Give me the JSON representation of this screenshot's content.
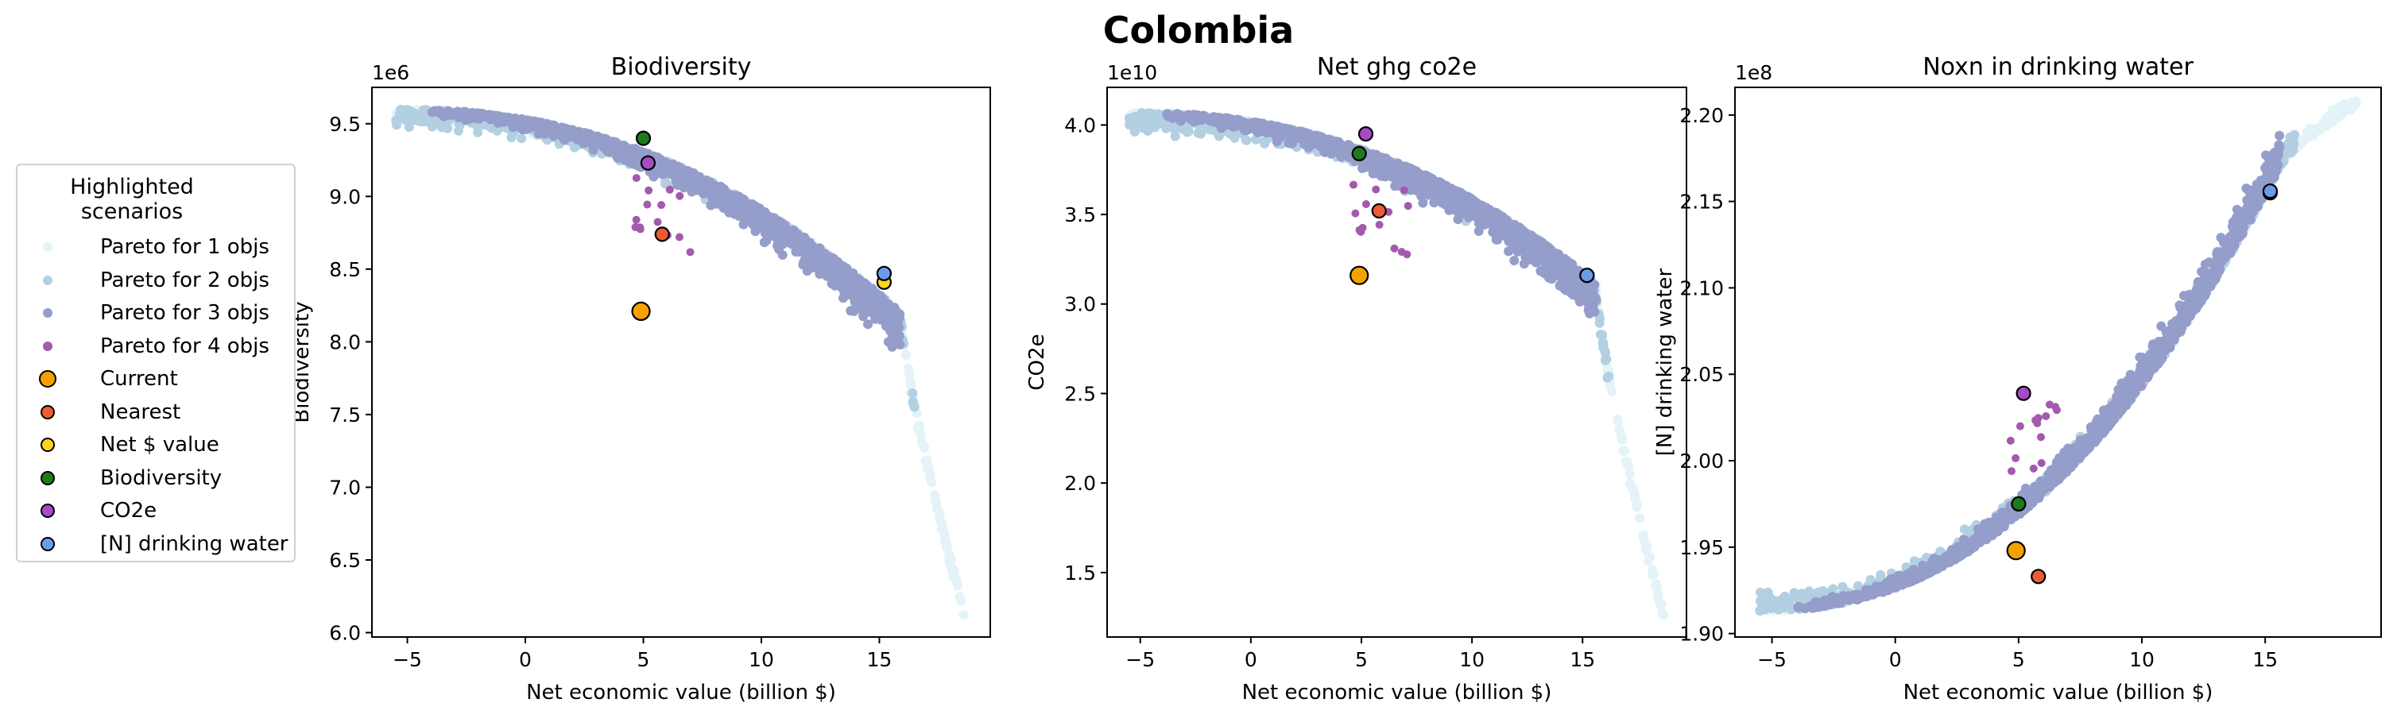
{
  "figure": {
    "suptitle": "Colombia",
    "legend_title": "Highlighted\nscenarios"
  },
  "legend": [
    {
      "label": "Pareto for 1 objs",
      "color": "#e4f3f7",
      "size": "small",
      "edge": false
    },
    {
      "label": "Pareto for 2 objs",
      "color": "#b3cfe2",
      "size": "small",
      "edge": false
    },
    {
      "label": "Pareto for 3 objs",
      "color": "#959dca",
      "size": "small",
      "edge": false
    },
    {
      "label": "Pareto for 4 objs",
      "color": "#a35aad",
      "size": "small",
      "edge": false
    },
    {
      "label": "Current",
      "color": "#f5a100",
      "size": "large",
      "edge": true
    },
    {
      "label": "Nearest",
      "color": "#ee5b34",
      "size": "medium",
      "edge": true
    },
    {
      "label": "Net $ value",
      "color": "#ffd320",
      "size": "medium",
      "edge": true
    },
    {
      "label": "Biodiversity",
      "color": "#1d7b1d",
      "size": "medium",
      "edge": true
    },
    {
      "label": "CO2e",
      "color": "#a44bc5",
      "size": "medium",
      "edge": true
    },
    {
      "label": "[N] drinking water",
      "color": "#6d9be8",
      "size": "medium",
      "edge": true
    }
  ],
  "chart_data": [
    {
      "type": "scatter",
      "title": "Biodiversity",
      "xlabel": "Net economic value (billion $)",
      "ylabel": "Biodiversity",
      "offset_text": "1e6",
      "xlim": [
        -6.5,
        19.7
      ],
      "ylim": [
        5.97,
        9.75
      ],
      "xticks": [
        -5,
        0,
        5,
        10,
        15
      ],
      "yticks": [
        6.0,
        6.5,
        7.0,
        7.5,
        8.0,
        8.5,
        9.0,
        9.5
      ],
      "frontier": {
        "x_start": -5.5,
        "x_knee": 15.9,
        "x_end": 18.7,
        "y_top": 9.6,
        "y_knee": 8.2,
        "y_end": 6.1
      },
      "highlights": [
        {
          "name": "Current",
          "x": 4.9,
          "y": 8.21
        },
        {
          "name": "Nearest",
          "x": 5.8,
          "y": 8.74
        },
        {
          "name": "Net $ value",
          "x": 15.2,
          "y": 8.41
        },
        {
          "name": "Biodiversity",
          "x": 5.0,
          "y": 9.4
        },
        {
          "name": "CO2e",
          "x": 5.2,
          "y": 9.23
        },
        {
          "name": "[N] drinking water",
          "x": 15.2,
          "y": 8.47
        }
      ]
    },
    {
      "type": "scatter",
      "title": "Net ghg co2e",
      "xlabel": "Net economic value (billion $)",
      "ylabel": "CO2e",
      "offset_text": "1e10",
      "xlim": [
        -6.5,
        19.7
      ],
      "ylim": [
        1.14,
        4.21
      ],
      "xticks": [
        -5,
        0,
        5,
        10,
        15
      ],
      "yticks": [
        1.5,
        2.0,
        2.5,
        3.0,
        3.5,
        4.0
      ],
      "frontier": {
        "x_start": -5.5,
        "x_knee": 15.6,
        "x_end": 18.7,
        "y_top": 4.07,
        "y_knee": 3.12,
        "y_end": 1.27
      },
      "highlights": [
        {
          "name": "Current",
          "x": 4.9,
          "y": 3.16
        },
        {
          "name": "Nearest",
          "x": 5.8,
          "y": 3.52
        },
        {
          "name": "Net $ value",
          "x": 15.2,
          "y": 3.16
        },
        {
          "name": "Biodiversity",
          "x": 4.9,
          "y": 3.84
        },
        {
          "name": "CO2e",
          "x": 5.2,
          "y": 3.95
        },
        {
          "name": "[N] drinking water",
          "x": 15.2,
          "y": 3.16
        }
      ]
    },
    {
      "type": "scatter",
      "title": "Noxn in drinking water",
      "xlabel": "Net economic value (billion $)",
      "ylabel": "[N] drinking water",
      "offset_text": "1e8",
      "xlim": [
        -6.5,
        19.7
      ],
      "ylim": [
        1.898,
        2.216
      ],
      "xticks": [
        -5,
        0,
        5,
        10,
        15
      ],
      "yticks": [
        1.9,
        1.95,
        2.0,
        2.05,
        2.1,
        2.15,
        2.2
      ],
      "frontier": {
        "x_start": -5.5,
        "x_knee": 15.6,
        "x_end": 18.7,
        "y_top": 1.913,
        "y_knee": 2.17,
        "y_end": 2.205
      },
      "highlights": [
        {
          "name": "Current",
          "x": 4.9,
          "y": 1.948
        },
        {
          "name": "Nearest",
          "x": 5.8,
          "y": 1.933
        },
        {
          "name": "Net $ value",
          "x": 15.2,
          "y": 2.155
        },
        {
          "name": "Biodiversity",
          "x": 5.0,
          "y": 1.975
        },
        {
          "name": "CO2e",
          "x": 5.2,
          "y": 2.039
        },
        {
          "name": "[N] drinking water",
          "x": 15.2,
          "y": 2.156
        }
      ]
    }
  ]
}
